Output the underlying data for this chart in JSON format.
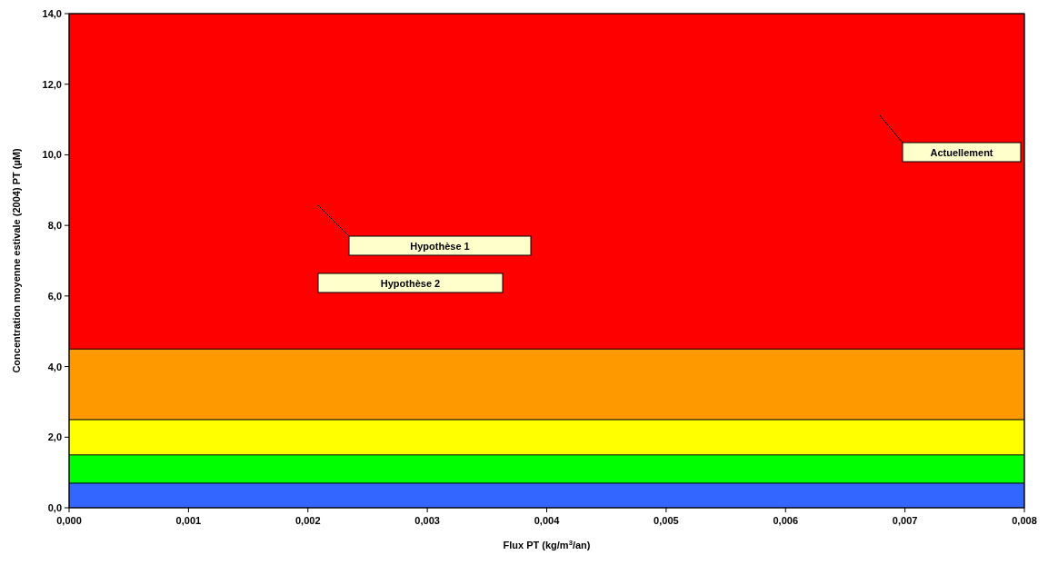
{
  "chart_data": {
    "type": "area",
    "stacked": true,
    "x": [
      0,
      0.008
    ],
    "series": [
      {
        "color": "#3366ff",
        "values": [
          0.7,
          0.7
        ]
      },
      {
        "color": "#00ff00",
        "values": [
          0.8,
          0.8
        ]
      },
      {
        "color": "#ffff00",
        "values": [
          1.0,
          1.0
        ]
      },
      {
        "color": "#ff9900",
        "values": [
          2.0,
          2.0
        ]
      },
      {
        "color": "#ff0000",
        "values": [
          9.5,
          9.5
        ]
      }
    ],
    "xlabel": "Flux PT (kg/m$^{3}$/an)",
    "ylabel": "Concentration moyenne estivale (2004) PT (µM)",
    "xlim": [
      0,
      0.008
    ],
    "xticks": [
      {
        "value": 0,
        "label": "0,000"
      },
      {
        "value": 0.001,
        "label": "0,001"
      },
      {
        "value": 0.002,
        "label": "0,002"
      },
      {
        "value": 0.003,
        "label": "0,003"
      },
      {
        "value": 0.004,
        "label": "0,004"
      },
      {
        "value": 0.005,
        "label": "0,005"
      },
      {
        "value": 0.006,
        "label": "0,006"
      },
      {
        "value": 0.007,
        "label": "0,007"
      },
      {
        "value": 0.008,
        "label": "0,008"
      }
    ],
    "ylim": [
      0,
      14
    ],
    "yticks": [
      {
        "value": 0,
        "label": "0,0"
      },
      {
        "value": 2,
        "label": "2,0"
      },
      {
        "value": 4,
        "label": "4,0"
      },
      {
        "value": 6,
        "label": "6,0"
      },
      {
        "value": 8,
        "label": "8,0"
      },
      {
        "value": 10,
        "label": "10,0"
      },
      {
        "value": 12,
        "label": "12,0"
      },
      {
        "value": 14,
        "label": "14,0"
      }
    ],
    "annotations": [
      "Actuellement",
      "Hypothèse 1",
      "Hypothèse 2"
    ]
  }
}
